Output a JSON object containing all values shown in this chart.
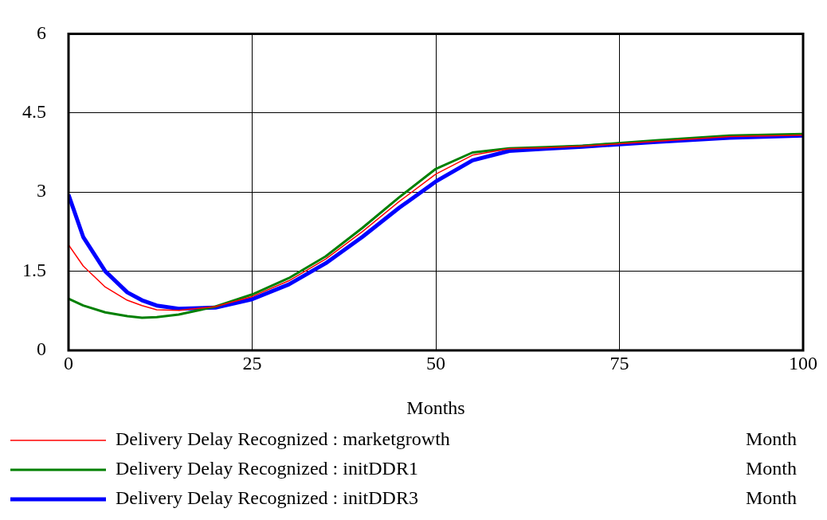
{
  "chart_data": {
    "type": "line",
    "xlabel": "Months",
    "x": [
      0,
      2,
      5,
      8,
      10,
      12,
      15,
      20,
      25,
      30,
      35,
      40,
      45,
      50,
      55,
      60,
      65,
      70,
      80,
      90,
      100
    ],
    "series": [
      {
        "name": "Delivery Delay Recognized : marketgrowth",
        "color": "#ff0000",
        "values": [
          2.0,
          1.6,
          1.2,
          0.95,
          0.85,
          0.77,
          0.76,
          0.83,
          1.02,
          1.32,
          1.73,
          2.25,
          2.82,
          3.34,
          3.7,
          3.82,
          3.84,
          3.87,
          3.96,
          4.05,
          4.08
        ]
      },
      {
        "name": "Delivery Delay Recognized : initDDR1",
        "color": "#008000",
        "values": [
          0.98,
          0.85,
          0.72,
          0.65,
          0.62,
          0.63,
          0.68,
          0.83,
          1.06,
          1.37,
          1.78,
          2.32,
          2.9,
          3.44,
          3.75,
          3.83,
          3.85,
          3.88,
          3.98,
          4.07,
          4.1
        ]
      },
      {
        "name": "Delivery Delay Recognized : initDDR3",
        "color": "#0000ff",
        "values": [
          2.95,
          2.15,
          1.5,
          1.1,
          0.95,
          0.85,
          0.79,
          0.81,
          0.97,
          1.25,
          1.65,
          2.15,
          2.7,
          3.2,
          3.6,
          3.78,
          3.82,
          3.86,
          3.95,
          4.03,
          4.07
        ]
      }
    ],
    "xlim": [
      0,
      100
    ],
    "xticks": [
      0,
      25,
      50,
      75,
      100
    ],
    "ylim": [
      0,
      6
    ],
    "yticks": [
      0,
      1.5,
      3,
      4.5,
      6
    ],
    "grid": true,
    "legend": "bottom",
    "marker": "none",
    "line_style": "solid",
    "annotations": [
      "Month",
      "Month",
      "Month"
    ]
  }
}
